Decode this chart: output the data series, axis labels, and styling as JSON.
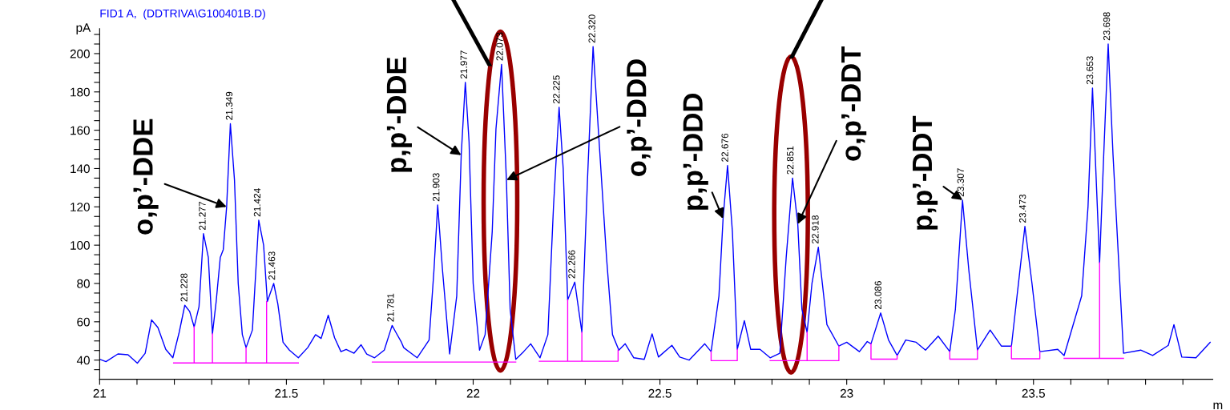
{
  "chart_data": {
    "type": "line",
    "title": "FID1 A,  (DDTRIVA\\G100401B.D)",
    "ylabel": "pA",
    "xlabel": "m",
    "xlim": [
      21,
      23.98
    ],
    "ylim": [
      30,
      213
    ],
    "xticks": [
      21,
      {
        "value": 21.1,
        "label": null
      },
      {
        "value": 21.2,
        "label": null
      },
      {
        "value": 21.3,
        "label": null
      },
      {
        "value": 21.4,
        "label": null
      },
      21.5,
      {
        "value": 21.6,
        "label": null
      },
      {
        "value": 21.7,
        "label": null
      },
      {
        "value": 21.8,
        "label": null
      },
      {
        "value": 21.9,
        "label": null
      },
      22,
      {
        "value": 22.1,
        "label": null
      },
      {
        "value": 22.2,
        "label": null
      },
      {
        "value": 22.3,
        "label": null
      },
      {
        "value": 22.4,
        "label": null
      },
      22.5,
      {
        "value": 22.6,
        "label": null
      },
      {
        "value": 22.7,
        "label": null
      },
      {
        "value": 22.8,
        "label": null
      },
      {
        "value": 22.9,
        "label": null
      },
      23,
      {
        "value": 23.1,
        "label": null
      },
      {
        "value": 23.2,
        "label": null
      },
      {
        "value": 23.3,
        "label": null
      },
      {
        "value": 23.4,
        "label": null
      },
      23.5,
      {
        "value": 23.6,
        "label": null
      },
      {
        "value": 23.7,
        "label": null
      },
      {
        "value": 23.8,
        "label": null
      },
      {
        "value": 23.9,
        "label": null
      }
    ],
    "yticks": [
      {
        "value": 35,
        "label": null
      },
      40,
      {
        "value": 45,
        "label": null
      },
      {
        "value": 50,
        "label": null
      },
      {
        "value": 55,
        "label": null
      },
      60,
      {
        "value": 65,
        "label": null
      },
      {
        "value": 70,
        "label": null
      },
      {
        "value": 75,
        "label": null
      },
      80,
      {
        "value": 85,
        "label": null
      },
      {
        "value": 90,
        "label": null
      },
      {
        "value": 95,
        "label": null
      },
      100,
      {
        "value": 105,
        "label": null
      },
      {
        "value": 110,
        "label": null
      },
      {
        "value": 115,
        "label": null
      },
      120,
      {
        "value": 125,
        "label": null
      },
      {
        "value": 130,
        "label": null
      },
      {
        "value": 135,
        "label": null
      },
      140,
      {
        "value": 145,
        "label": null
      },
      {
        "value": 150,
        "label": null
      },
      {
        "value": 155,
        "label": null
      },
      160,
      {
        "value": 165,
        "label": null
      },
      {
        "value": 170,
        "label": null
      },
      {
        "value": 175,
        "label": null
      },
      180,
      {
        "value": 185,
        "label": null
      },
      {
        "value": 190,
        "label": null
      },
      {
        "value": 195,
        "label": null
      },
      200,
      {
        "value": 205,
        "label": null
      },
      {
        "value": 210,
        "label": null
      }
    ],
    "grid": false,
    "marker": "none",
    "line_style": "solid",
    "series": [
      {
        "color": "#0000ff",
        "x": [
          21.0,
          21.017,
          21.049,
          21.076,
          21.101,
          21.122,
          21.139,
          21.156,
          21.177,
          21.196,
          21.213,
          21.228,
          21.241,
          21.253,
          21.266,
          21.278,
          21.291,
          21.302,
          21.312,
          21.323,
          21.331,
          21.34,
          21.35,
          21.361,
          21.371,
          21.382,
          21.392,
          21.409,
          21.426,
          21.439,
          21.449,
          21.466,
          21.477,
          21.491,
          21.508,
          21.532,
          21.557,
          21.578,
          21.593,
          21.612,
          21.629,
          21.646,
          21.66,
          21.681,
          21.7,
          21.715,
          21.736,
          21.762,
          21.783,
          21.793,
          21.808,
          21.814,
          21.85,
          21.882,
          21.895,
          21.905,
          21.918,
          21.937,
          21.956,
          21.968,
          21.979,
          21.989,
          22.0,
          22.017,
          22.032,
          22.051,
          22.061,
          22.076,
          22.089,
          22.099,
          22.114,
          22.135,
          22.154,
          22.179,
          22.2,
          22.215,
          22.23,
          22.241,
          22.253,
          22.272,
          22.291,
          22.306,
          22.321,
          22.335,
          22.357,
          22.373,
          22.39,
          22.407,
          22.43,
          22.458,
          22.479,
          22.496,
          22.532,
          22.553,
          22.578,
          22.62,
          22.637,
          22.658,
          22.669,
          22.681,
          22.694,
          22.707,
          22.726,
          22.743,
          22.768,
          22.795,
          22.821,
          22.838,
          22.855,
          22.869,
          22.88,
          22.894,
          22.907,
          22.924,
          22.947,
          22.979,
          23.0,
          23.034,
          23.055,
          23.065,
          23.091,
          23.112,
          23.135,
          23.158,
          23.186,
          23.211,
          23.245,
          23.276,
          23.291,
          23.31,
          23.327,
          23.35,
          23.384,
          23.414,
          23.441,
          23.456,
          23.477,
          23.496,
          23.517,
          23.565,
          23.582,
          23.629,
          23.646,
          23.658,
          23.677,
          23.688,
          23.7,
          23.713,
          23.741,
          23.787,
          23.819,
          23.861,
          23.876,
          23.897,
          23.935,
          23.973
        ],
        "values": [
          40.4,
          39.2,
          43.2,
          42.8,
          38.4,
          43.6,
          61,
          57,
          45.6,
          41.2,
          54.5,
          68.6,
          65.4,
          57.3,
          67.8,
          106,
          93.6,
          53.7,
          70.6,
          93.6,
          97.7,
          120,
          163.4,
          134,
          80,
          53.3,
          46.5,
          55.7,
          113,
          100,
          70.6,
          80,
          69.4,
          49.3,
          45.2,
          41.2,
          46.5,
          53.3,
          51.3,
          63.4,
          51.7,
          44.4,
          45.6,
          43.6,
          48,
          43.2,
          41.2,
          45.2,
          58.1,
          54.5,
          49.3,
          46.5,
          41.2,
          50.5,
          86.8,
          121,
          86.8,
          43.2,
          73.5,
          147,
          185,
          154,
          80,
          45.2,
          53.3,
          107,
          160.6,
          194.4,
          134,
          66.6,
          40.4,
          44.4,
          48.5,
          41.2,
          53.3,
          120,
          172,
          140,
          71.4,
          80.7,
          54.5,
          134,
          203.7,
          160.6,
          93.6,
          53.3,
          45.2,
          48.5,
          41.2,
          40.4,
          53.7,
          41.6,
          47.7,
          41.6,
          40,
          48.5,
          44.4,
          73.5,
          113.8,
          141.6,
          107,
          45.6,
          60.6,
          45.6,
          45.6,
          41.2,
          43.6,
          93.6,
          135,
          111,
          66.6,
          54.5,
          80,
          98.9,
          58.5,
          47.3,
          49.3,
          44.4,
          49.7,
          48.5,
          64.6,
          50.5,
          42.4,
          50.5,
          49.3,
          45.2,
          52.5,
          44.4,
          66.6,
          123.5,
          86.8,
          45.2,
          55.7,
          47.3,
          47.3,
          73.5,
          109.8,
          80,
          44.4,
          45.6,
          42.4,
          73.5,
          120,
          182,
          90.8,
          147,
          205,
          147,
          43.6,
          45.2,
          42.4,
          47.7,
          58.5,
          41.6,
          41.2,
          49.3
        ]
      },
      {
        "color": "#ff00ff",
        "x": [
          21.198,
          21.532,
          null,
          21.253,
          21.253,
          null,
          21.302,
          21.302,
          null,
          21.392,
          21.392,
          null,
          21.447,
          21.447,
          null,
          21.73,
          22.114,
          null,
          22.177,
          22.388,
          22.388,
          null,
          22.253,
          22.253,
          null,
          22.291,
          22.291,
          null,
          22.637,
          22.637,
          22.707,
          22.707,
          null,
          22.795,
          22.979,
          22.979,
          null,
          22.894,
          22.894,
          null,
          23.065,
          23.065,
          23.135,
          23.135,
          null,
          23.276,
          23.276,
          23.35,
          23.35,
          null,
          23.441,
          23.441,
          23.517,
          23.517,
          null,
          23.582,
          23.741,
          null,
          23.677,
          23.677
        ],
        "values": [
          38.5,
          38.5,
          null,
          38.5,
          57.3,
          null,
          38.5,
          53.7,
          null,
          38.5,
          46.5,
          null,
          38.5,
          70.6,
          null,
          39,
          39,
          null,
          39.4,
          39.4,
          45.2,
          null,
          39.4,
          71.4,
          null,
          39.4,
          54.5,
          null,
          44.4,
          39.7,
          39.7,
          45.6,
          null,
          39.7,
          39.7,
          47.3,
          null,
          39.7,
          54.5,
          null,
          48.5,
          40.5,
          40.5,
          42.4,
          null,
          44.4,
          40.5,
          40.5,
          45.2,
          null,
          47.3,
          40.7,
          40.7,
          44.4,
          null,
          40.9,
          40.9,
          null,
          40.9,
          90.8
        ]
      }
    ],
    "annotations": [
      {
        "text": "21.228",
        "x": 21.228,
        "y": 68.6
      },
      {
        "text": "21.277",
        "x": 21.277,
        "y": 106
      },
      {
        "text": "21.349",
        "x": 21.349,
        "y": 163.4
      },
      {
        "text": "21.424",
        "x": 21.424,
        "y": 113
      },
      {
        "text": "21.463",
        "x": 21.463,
        "y": 80
      },
      {
        "text": "21.781",
        "x": 21.781,
        "y": 58.1
      },
      {
        "text": "21.903",
        "x": 21.903,
        "y": 121
      },
      {
        "text": "21.977",
        "x": 21.977,
        "y": 185
      },
      {
        "text": "22.073",
        "x": 22.073,
        "y": 194.4
      },
      {
        "text": "22.225",
        "x": 22.225,
        "y": 172
      },
      {
        "text": "22.266",
        "x": 22.266,
        "y": 80.7
      },
      {
        "text": "22.320",
        "x": 22.32,
        "y": 203.7
      },
      {
        "text": "22.676",
        "x": 22.676,
        "y": 141.6
      },
      {
        "text": "22.851",
        "x": 22.851,
        "y": 135
      },
      {
        "text": "22.918",
        "x": 22.918,
        "y": 98.9
      },
      {
        "text": "23.086",
        "x": 23.086,
        "y": 64.6
      },
      {
        "text": "23.307",
        "x": 23.307,
        "y": 123.5
      },
      {
        "text": "23.473",
        "x": 23.473,
        "y": 109.8
      },
      {
        "text": "23.653",
        "x": 23.653,
        "y": 182
      },
      {
        "text": "23.698",
        "x": 23.698,
        "y": 205
      },
      {
        "text": "o,p’-DDE",
        "x": 21.34,
        "y": 120
      },
      {
        "text": "p,p’-DDE",
        "x": 21.968,
        "y": 147
      },
      {
        "text": "o,p’-DDD",
        "x": 22.089,
        "y": 134
      },
      {
        "text": "p,p’-DDD",
        "x": 22.669,
        "y": 113.8
      },
      {
        "text": "o,p’-DDT",
        "x": 22.869,
        "y": 111
      },
      {
        "text": "p,p’-DDT",
        "x": 23.31,
        "y": 123.5
      }
    ]
  }
}
